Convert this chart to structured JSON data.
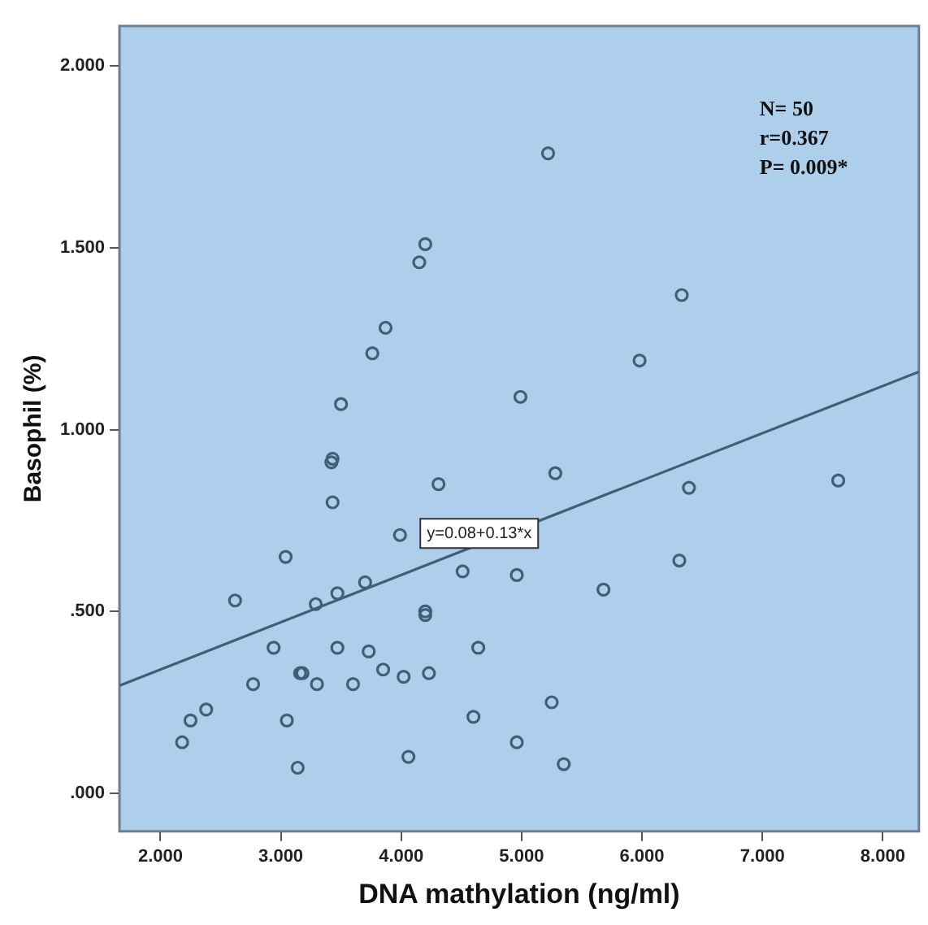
{
  "chart_data": {
    "type": "scatter",
    "xlabel": "DNA mathylation (ng/ml)",
    "ylabel": "Basophil (%)",
    "xlim": [
      1.66,
      8.3
    ],
    "ylim": [
      -0.105,
      2.11
    ],
    "xticks": [
      {
        "value": 2,
        "label": "2.000"
      },
      {
        "value": 3,
        "label": "3.000"
      },
      {
        "value": 4,
        "label": "4.000"
      },
      {
        "value": 5,
        "label": "5.000"
      },
      {
        "value": 6,
        "label": "6.000"
      },
      {
        "value": 7,
        "label": "7.000"
      },
      {
        "value": 8,
        "label": "8.000"
      }
    ],
    "yticks": [
      {
        "value": 0,
        "label": ".000"
      },
      {
        "value": 0.5,
        "label": ".500"
      },
      {
        "value": 1,
        "label": "1.000"
      },
      {
        "value": 1.5,
        "label": "1.500"
      },
      {
        "value": 2,
        "label": "2.000"
      }
    ],
    "grid": false,
    "legend": false,
    "marker": "circle",
    "series": [
      {
        "color": "#3d6077",
        "x": [
          4.2,
          4.15,
          3.87,
          3.76,
          3.5,
          5.22,
          6.33,
          5.98,
          4.99,
          3.42,
          3.43,
          3.43,
          4.31,
          3.99,
          3.04,
          4.51,
          2.62,
          3.7,
          3.47,
          3.29,
          4.2,
          4.2,
          2.94,
          3.47,
          3.73,
          4.64,
          3.18,
          3.16,
          3.85,
          4.23,
          4.02,
          3.3,
          2.77,
          3.6,
          2.38,
          2.25,
          3.05,
          2.18,
          4.6,
          4.06,
          3.14,
          5.28,
          6.39,
          7.63,
          4.96,
          5.68,
          6.31,
          5.25,
          4.96,
          5.35
        ],
        "values": [
          1.51,
          1.46,
          1.28,
          1.21,
          1.07,
          1.76,
          1.37,
          1.19,
          1.09,
          0.91,
          0.92,
          0.8,
          0.85,
          0.71,
          0.65,
          0.61,
          0.53,
          0.58,
          0.55,
          0.52,
          0.49,
          0.5,
          0.4,
          0.4,
          0.39,
          0.4,
          0.33,
          0.33,
          0.34,
          0.33,
          0.32,
          0.3,
          0.3,
          0.3,
          0.23,
          0.2,
          0.2,
          0.14,
          0.21,
          0.1,
          0.07,
          0.88,
          0.84,
          0.86,
          0.6,
          0.56,
          0.64,
          0.25,
          0.14,
          0.08
        ]
      },
      {
        "type": "line",
        "color": "#3d6077",
        "x": [
          1.66,
          8.3
        ],
        "values": [
          0.296,
          1.159
        ],
        "marker": "none"
      }
    ],
    "annotations": [
      "y=0.08+0.13*x",
      "N= 50",
      "r=0.367",
      "P= 0.009*"
    ]
  }
}
